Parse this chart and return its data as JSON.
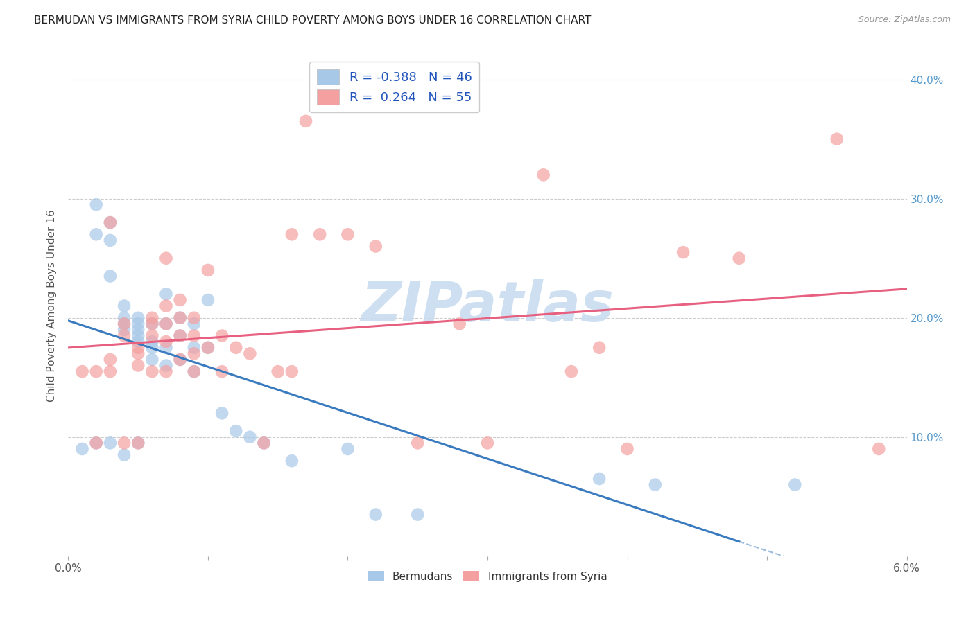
{
  "title": "BERMUDAN VS IMMIGRANTS FROM SYRIA CHILD POVERTY AMONG BOYS UNDER 16 CORRELATION CHART",
  "source": "Source: ZipAtlas.com",
  "ylabel": "Child Poverty Among Boys Under 16",
  "xlim": [
    0.0,
    0.06
  ],
  "ylim": [
    0.0,
    0.42
  ],
  "xtick_positions": [
    0.0,
    0.01,
    0.02,
    0.03,
    0.04,
    0.05,
    0.06
  ],
  "xtick_labels": [
    "0.0%",
    "",
    "",
    "",
    "",
    "",
    "6.0%"
  ],
  "ytick_positions": [
    0.0,
    0.1,
    0.2,
    0.3,
    0.4
  ],
  "ytick_labels_left": [
    "",
    "",
    "",
    "",
    ""
  ],
  "ytick_labels_right": [
    "",
    "10.0%",
    "20.0%",
    "30.0%",
    "40.0%"
  ],
  "blue_R": "-0.388",
  "blue_N": "46",
  "pink_R": "0.264",
  "pink_N": "55",
  "blue_color": "#a8c8e8",
  "pink_color": "#f4a0a0",
  "blue_line_color": "#3a7bbf",
  "pink_line_color": "#e86080",
  "watermark_text": "ZIPatlas",
  "watermark_color": "#c8dcf0",
  "blue_scatter_x": [
    0.001,
    0.002,
    0.002,
    0.002,
    0.003,
    0.003,
    0.003,
    0.003,
    0.004,
    0.004,
    0.004,
    0.004,
    0.004,
    0.005,
    0.005,
    0.005,
    0.005,
    0.005,
    0.005,
    0.006,
    0.006,
    0.006,
    0.006,
    0.007,
    0.007,
    0.007,
    0.007,
    0.008,
    0.008,
    0.008,
    0.009,
    0.009,
    0.009,
    0.01,
    0.01,
    0.011,
    0.012,
    0.013,
    0.014,
    0.016,
    0.02,
    0.022,
    0.025,
    0.038,
    0.042,
    0.052
  ],
  "blue_scatter_y": [
    0.09,
    0.295,
    0.27,
    0.095,
    0.28,
    0.265,
    0.235,
    0.095,
    0.21,
    0.2,
    0.195,
    0.19,
    0.085,
    0.2,
    0.195,
    0.19,
    0.185,
    0.18,
    0.095,
    0.195,
    0.18,
    0.175,
    0.165,
    0.22,
    0.195,
    0.175,
    0.16,
    0.2,
    0.185,
    0.165,
    0.195,
    0.175,
    0.155,
    0.215,
    0.175,
    0.12,
    0.105,
    0.1,
    0.095,
    0.08,
    0.09,
    0.035,
    0.035,
    0.065,
    0.06,
    0.06
  ],
  "pink_scatter_x": [
    0.001,
    0.002,
    0.002,
    0.003,
    0.003,
    0.003,
    0.004,
    0.004,
    0.004,
    0.005,
    0.005,
    0.005,
    0.005,
    0.006,
    0.006,
    0.006,
    0.006,
    0.007,
    0.007,
    0.007,
    0.007,
    0.007,
    0.008,
    0.008,
    0.008,
    0.008,
    0.009,
    0.009,
    0.009,
    0.009,
    0.01,
    0.01,
    0.011,
    0.011,
    0.012,
    0.013,
    0.014,
    0.015,
    0.016,
    0.016,
    0.017,
    0.018,
    0.02,
    0.022,
    0.025,
    0.028,
    0.03,
    0.034,
    0.036,
    0.038,
    0.04,
    0.044,
    0.048,
    0.055,
    0.058
  ],
  "pink_scatter_y": [
    0.155,
    0.155,
    0.095,
    0.165,
    0.155,
    0.28,
    0.195,
    0.185,
    0.095,
    0.175,
    0.17,
    0.16,
    0.095,
    0.2,
    0.195,
    0.185,
    0.155,
    0.25,
    0.21,
    0.195,
    0.18,
    0.155,
    0.215,
    0.2,
    0.185,
    0.165,
    0.2,
    0.185,
    0.17,
    0.155,
    0.24,
    0.175,
    0.185,
    0.155,
    0.175,
    0.17,
    0.095,
    0.155,
    0.155,
    0.27,
    0.365,
    0.27,
    0.27,
    0.26,
    0.095,
    0.195,
    0.095,
    0.32,
    0.155,
    0.175,
    0.09,
    0.255,
    0.25,
    0.35,
    0.09
  ]
}
